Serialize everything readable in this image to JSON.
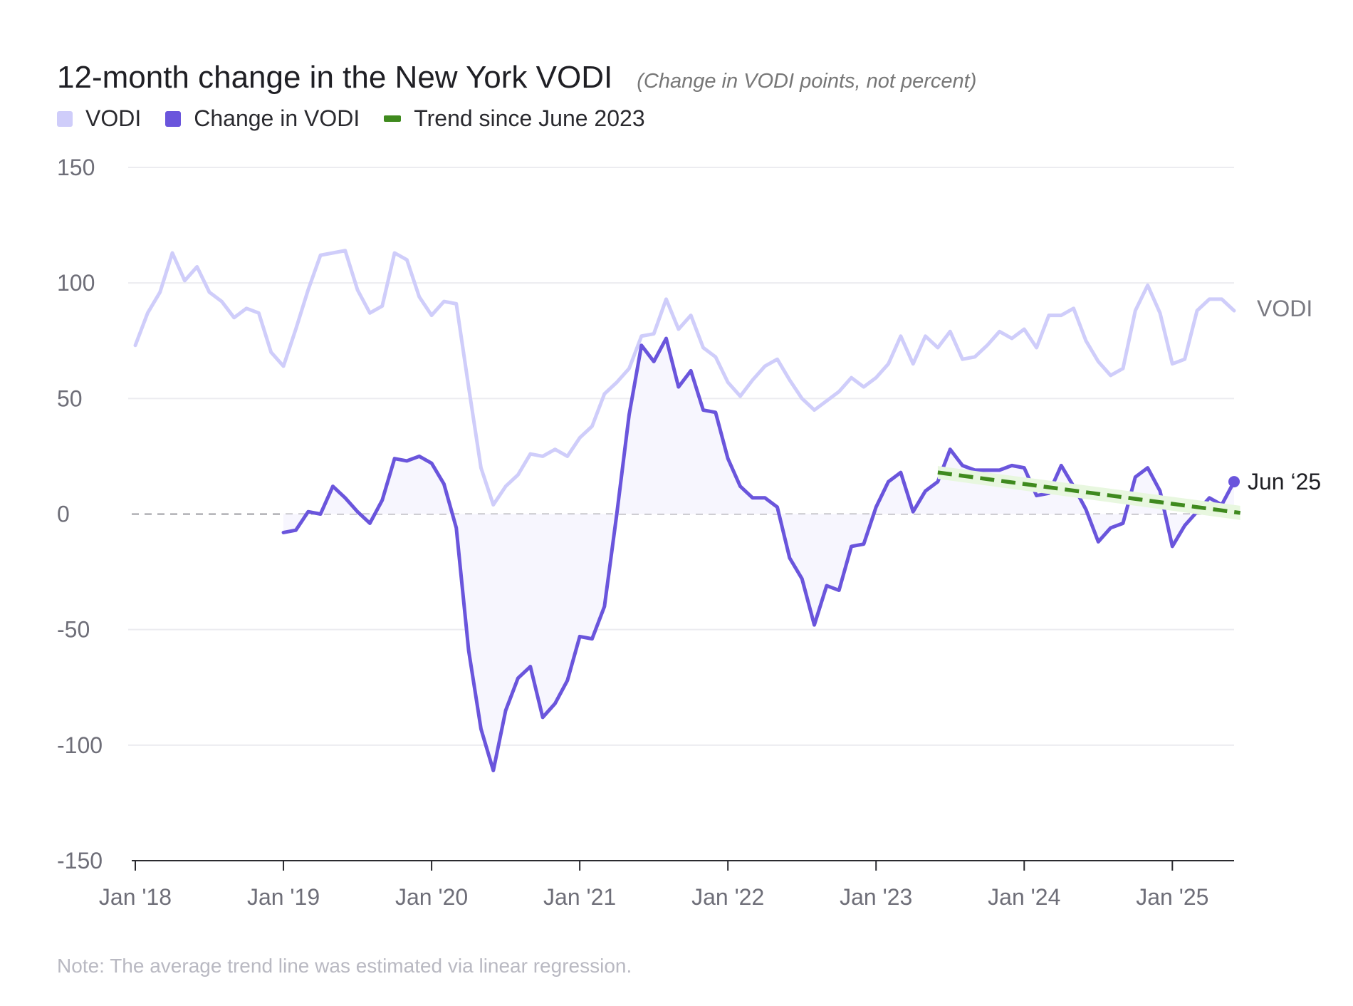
{
  "title": "12-month change in the New York VODI",
  "subtitle": "(Change in VODI points, not percent)",
  "note": "Note: The average trend line was estimated via linear regression.",
  "colors": {
    "vodi": "#cfcdfa",
    "change": "#6a55dc",
    "trend": "#3f8a1e",
    "trend_band": "#e8f7df",
    "grid": "#ececf0",
    "axis": "#2a2a2f",
    "zero_line": "#77777f",
    "fill": "#f7f6fe"
  },
  "legend": [
    {
      "label": "VODI",
      "color": "#cfcdfa",
      "style": "square"
    },
    {
      "label": "Change in VODI",
      "color": "#6a55dc",
      "style": "square"
    },
    {
      "label": "Trend since June 2023",
      "color": "#3f8a1e",
      "style": "dash"
    }
  ],
  "chart_data": {
    "type": "line",
    "x_start": "2018-01",
    "x_end": "2025-06",
    "x_ticks": [
      "Jan '18",
      "Jan '19",
      "Jan '20",
      "Jan '21",
      "Jan '22",
      "Jan '23",
      "Jan '24",
      "Jan '25"
    ],
    "y_ticks": [
      "150",
      "100",
      "50",
      "0",
      "-50",
      "-100",
      "-150"
    ],
    "ylim": [
      -150,
      150
    ],
    "grid": true,
    "zero_reference_line": true,
    "series": [
      {
        "name": "VODI",
        "start": "2018-01",
        "values": [
          73,
          87,
          96,
          113,
          101,
          107,
          96,
          92,
          85,
          89,
          87,
          70,
          64,
          80,
          97,
          112,
          113,
          114,
          97,
          87,
          90,
          113,
          110,
          94,
          86,
          92,
          91,
          55,
          20,
          4,
          12,
          17,
          26,
          25,
          28,
          25,
          33,
          38,
          52,
          57,
          63,
          77,
          78,
          93,
          80,
          86,
          72,
          68,
          57,
          51,
          58,
          64,
          67,
          58,
          50,
          45,
          49,
          53,
          59,
          55,
          59,
          65,
          77,
          65,
          77,
          72,
          79,
          67,
          68,
          73,
          79,
          76,
          80,
          72,
          86,
          86,
          89,
          75,
          66,
          60,
          63,
          88,
          99,
          87,
          65,
          67,
          88,
          93,
          93,
          88
        ],
        "end_label": "VODI"
      },
      {
        "name": "Change in VODI",
        "start": "2019-01",
        "values": [
          -8,
          -7,
          1,
          0,
          12,
          7,
          1,
          -4,
          6,
          24,
          23,
          25,
          22,
          13,
          -6,
          -59,
          -93,
          -111,
          -85,
          -71,
          -66,
          -88,
          -82,
          -72,
          -53,
          -54,
          -40,
          0,
          43,
          73,
          66,
          76,
          55,
          62,
          45,
          44,
          24,
          12,
          7,
          7,
          3,
          -19,
          -28,
          -48,
          -31,
          -33,
          -14,
          -13,
          3,
          14,
          18,
          1,
          10,
          14,
          28,
          21,
          19,
          19,
          19,
          21,
          20,
          8,
          9,
          21,
          12,
          2,
          -12,
          -6,
          -4,
          16,
          20,
          10,
          -14,
          -5,
          1,
          7,
          4,
          14
        ],
        "end_label": "Jun ‘25"
      },
      {
        "name": "Trend since June 2023",
        "start": "2023-06",
        "end": "2025-06",
        "start_value": 18,
        "end_value": 0.5
      }
    ]
  }
}
